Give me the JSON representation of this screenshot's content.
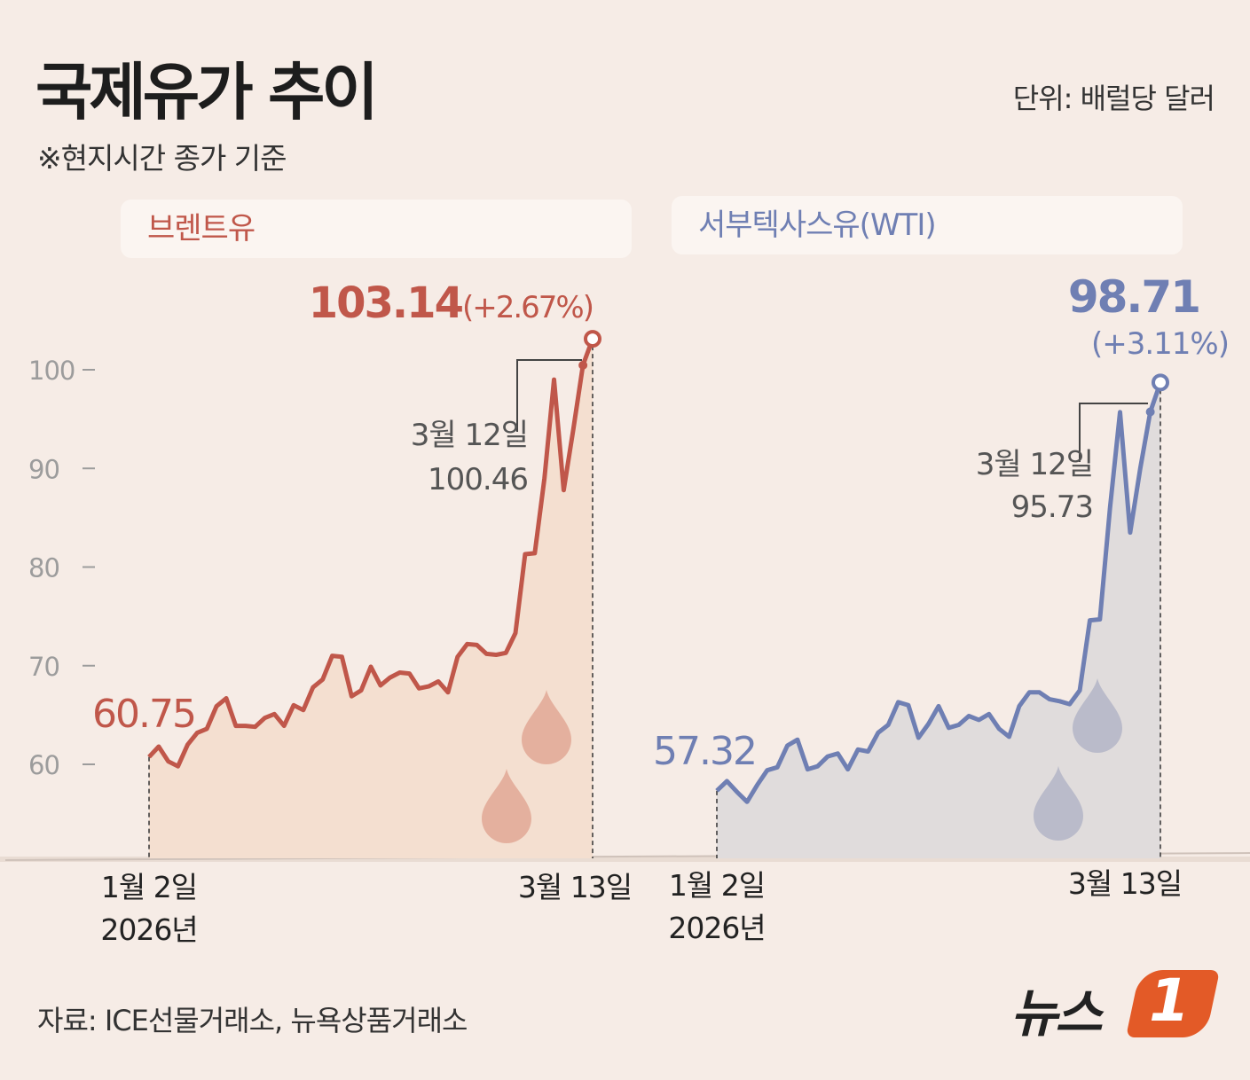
{
  "header": {
    "title": "국제유가 추이",
    "unit": "단위: 배럴당 달러",
    "note": "※현지시간 종가 기준"
  },
  "footer": {
    "source": "자료: ICE선물거래소, 뉴욕상품거래소",
    "logo_text": "뉴스",
    "logo_badge": "1"
  },
  "colors": {
    "background": "#f6ece6",
    "brent_line": "#c0574a",
    "brent_fill": "#f4dfd0",
    "wti_line": "#6f7fb3",
    "wti_fill": "#e0dcdc",
    "logo_accent": "#e35a27"
  },
  "chart_data": [
    {
      "type": "line",
      "title": "브렌트유",
      "y_ticks": [
        60,
        70,
        80,
        90,
        100
      ],
      "ylim": [
        50,
        105
      ],
      "x_start_label": "1월 2일",
      "x_start_year": "2026년",
      "x_end_label": "3월 13일",
      "start_value": 60.75,
      "end_value": 103.14,
      "end_change": "(+2.67%)",
      "prev_label": "3월 12일",
      "prev_value": 100.46,
      "series": [
        {
          "values": [
            60.75,
            61.8,
            60.3,
            59.8,
            62.0,
            63.2,
            63.6,
            65.9,
            66.7,
            63.9,
            63.9,
            63.8,
            64.7,
            65.1,
            63.9,
            66.0,
            65.5,
            67.8,
            68.6,
            71.0,
            70.9,
            66.9,
            67.5,
            69.9,
            68.0,
            68.8,
            69.3,
            69.2,
            67.7,
            67.9,
            68.4,
            67.3,
            70.9,
            72.2,
            72.1,
            71.2,
            71.1,
            71.3,
            73.3,
            81.3,
            81.4,
            89.0,
            99.0,
            87.8,
            94.0,
            100.46,
            103.14
          ]
        }
      ]
    },
    {
      "type": "line",
      "title": "서부텍사스유(WTI)",
      "y_ticks": [
        60,
        70,
        80,
        90,
        100
      ],
      "ylim": [
        50,
        105
      ],
      "x_start_label": "1월 2일",
      "x_start_year": "2026년",
      "x_end_label": "3월 13일",
      "start_value": 57.32,
      "end_value": 98.71,
      "end_change": "(+3.11%)",
      "prev_label": "3월 12일",
      "prev_value": 95.73,
      "series": [
        {
          "values": [
            57.32,
            58.3,
            57.2,
            56.2,
            57.9,
            59.4,
            59.7,
            61.9,
            62.5,
            59.5,
            59.8,
            60.8,
            61.1,
            59.5,
            61.5,
            61.3,
            63.2,
            64.0,
            66.3,
            66.0,
            62.7,
            64.1,
            65.9,
            63.7,
            64.0,
            64.9,
            64.5,
            65.1,
            63.6,
            62.8,
            65.9,
            67.3,
            67.3,
            66.6,
            66.4,
            66.1,
            67.5,
            74.6,
            74.7,
            86.0,
            95.7,
            83.5,
            90.0,
            95.73,
            98.71
          ]
        }
      ]
    }
  ]
}
